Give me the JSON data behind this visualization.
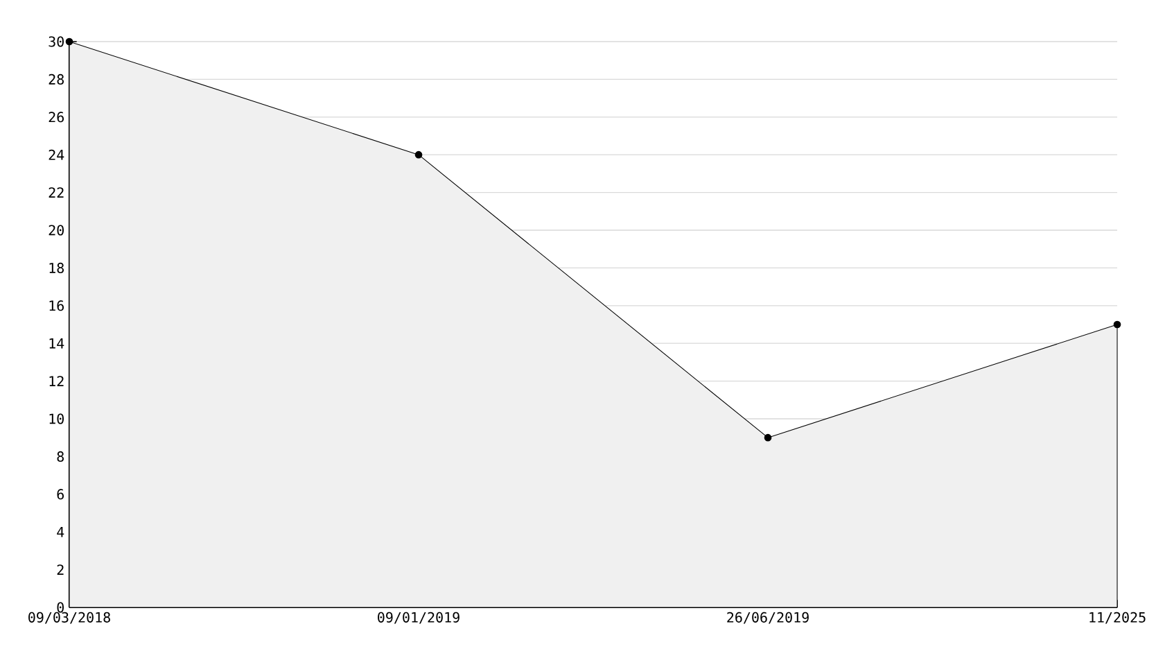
{
  "chart_data": {
    "type": "area",
    "categories": [
      "09/03/2018",
      "09/01/2019",
      "26/06/2019",
      "11/2025"
    ],
    "values": [
      30,
      24,
      9,
      15
    ],
    "color": "#000000",
    "ylim": [
      0,
      30
    ],
    "yticks": [
      0,
      2,
      4,
      6,
      8,
      10,
      12,
      14,
      16,
      18,
      20,
      22,
      24,
      26,
      28,
      30
    ],
    "grid": "y",
    "marker": "circle",
    "line_style": "solid"
  }
}
